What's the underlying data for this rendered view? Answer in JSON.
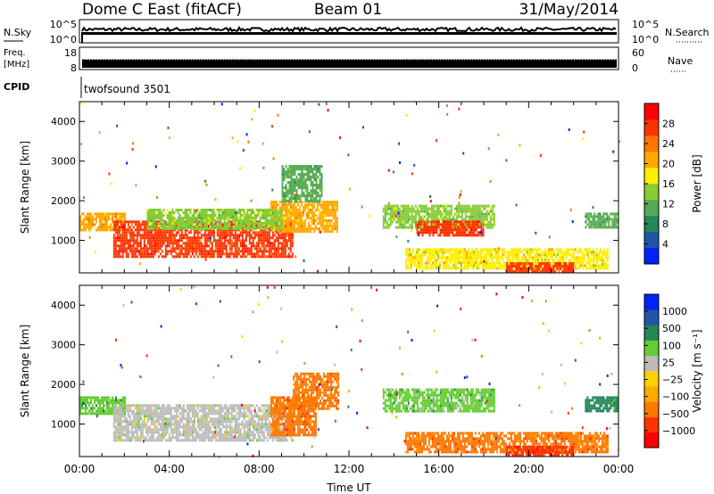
{
  "header": {
    "station": "Dome C East (fitACF)",
    "beam": "Beam 01",
    "date": "31/May/2014"
  },
  "strips": {
    "nsky_label": "N.Sky",
    "nsearch_label": "N.Search",
    "noise_ticks": [
      "10^5",
      "10^0"
    ],
    "freq_label": "Freq.",
    "freq_unit": "[MHz]",
    "freq_ticks": [
      "18",
      "8"
    ],
    "nave_label": "Nave",
    "nave_ticks": [
      "60",
      "0"
    ],
    "cpid_label": "CPID",
    "cpid_value": "twofsound 3501"
  },
  "colors": {
    "power": [
      "#0022ff",
      "#2255aa",
      "#228855",
      "#55aa55",
      "#88cc33",
      "#ffee00",
      "#ffaa00",
      "#ff7700",
      "#ff3300",
      "#ff0000"
    ],
    "velocity": [
      "#ff0000",
      "#ff3300",
      "#ff7700",
      "#ffaa00",
      "#ffd000",
      "#bbbbbb",
      "#66cc33",
      "#228855",
      "#2255aa",
      "#0022ff"
    ]
  },
  "chart_data": [
    {
      "type": "heatmap",
      "name": "Power",
      "ylabel": "Slant Range [km]",
      "xlim": [
        "00:00",
        "24:00"
      ],
      "ylim": [
        180,
        4500
      ],
      "yticks": [
        1000,
        2000,
        3000,
        4000
      ],
      "colorbar": {
        "label": "Power [dB]",
        "range": [
          0,
          32
        ],
        "ticks": [
          4,
          8,
          12,
          16,
          20,
          24,
          28
        ]
      },
      "regions": [
        {
          "t": [
            0.0,
            2.0
          ],
          "r": [
            1250,
            1700
          ],
          "value": 20
        },
        {
          "t": [
            1.5,
            9.5
          ],
          "r": [
            600,
            1500
          ],
          "value": 28
        },
        {
          "t": [
            8.5,
            11.5
          ],
          "r": [
            1200,
            2000
          ],
          "value": 22
        },
        {
          "t": [
            3.0,
            9.0
          ],
          "r": [
            1300,
            1800
          ],
          "value": 14
        },
        {
          "t": [
            9.0,
            10.8
          ],
          "r": [
            2000,
            2900
          ],
          "value": 10
        },
        {
          "t": [
            13.5,
            18.5
          ],
          "r": [
            1300,
            1900
          ],
          "value": 14
        },
        {
          "t": [
            15.0,
            18.0
          ],
          "r": [
            1100,
            1500
          ],
          "value": 26
        },
        {
          "t": [
            14.5,
            23.5
          ],
          "r": [
            300,
            800
          ],
          "value": 18
        },
        {
          "t": [
            19.0,
            22.0
          ],
          "r": [
            200,
            450
          ],
          "value": 28
        },
        {
          "t": [
            22.5,
            24.0
          ],
          "r": [
            1300,
            1700
          ],
          "value": 10
        }
      ]
    },
    {
      "type": "heatmap",
      "name": "Velocity",
      "ylabel": "Slant Range [km]",
      "xlabel": "Time UT",
      "xlim": [
        "00:00",
        "24:00"
      ],
      "ylim": [
        180,
        4500
      ],
      "yticks": [
        1000,
        2000,
        3000,
        4000
      ],
      "xticks": [
        "00:00",
        "04:00",
        "08:00",
        "12:00",
        "16:00",
        "20:00",
        "00:00"
      ],
      "colorbar": {
        "label": "Velocity [m s⁻¹]",
        "ticks": [
          "1000",
          "500",
          "100",
          "25",
          "−25",
          "−100",
          "−500",
          "−1000"
        ]
      },
      "regions": [
        {
          "t": [
            0.0,
            2.0
          ],
          "r": [
            1250,
            1700
          ],
          "value": 100
        },
        {
          "t": [
            1.5,
            9.5
          ],
          "r": [
            600,
            1500
          ],
          "value": 25
        },
        {
          "t": [
            8.5,
            10.5
          ],
          "r": [
            700,
            1700
          ],
          "value": -100
        },
        {
          "t": [
            9.5,
            11.5
          ],
          "r": [
            1400,
            2300
          ],
          "value": -100
        },
        {
          "t": [
            13.5,
            18.5
          ],
          "r": [
            1300,
            1900
          ],
          "value": 100
        },
        {
          "t": [
            14.5,
            23.5
          ],
          "r": [
            300,
            800
          ],
          "value": -100
        },
        {
          "t": [
            19.0,
            22.0
          ],
          "r": [
            200,
            450
          ],
          "value": -500
        },
        {
          "t": [
            22.5,
            24.0
          ],
          "r": [
            1300,
            1700
          ],
          "value": 500
        }
      ]
    }
  ]
}
